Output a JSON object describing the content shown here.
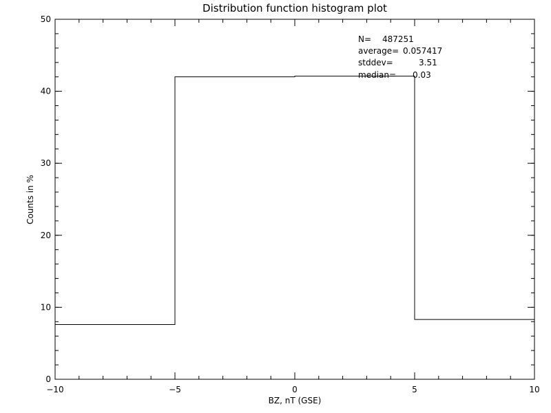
{
  "chart_data": {
    "type": "bar",
    "title": "Distribution function histogram plot",
    "xlabel": "BZ, nT (GSE)",
    "ylabel": "Counts in %",
    "xlim": [
      -10,
      10
    ],
    "ylim": [
      0,
      50
    ],
    "x_ticks": [
      -10,
      -5,
      0,
      5,
      10
    ],
    "x_tick_labels": [
      "−10",
      "−5",
      "0",
      "5",
      "10"
    ],
    "y_ticks": [
      0,
      10,
      20,
      30,
      40,
      50
    ],
    "y_tick_labels": [
      "0",
      "10",
      "20",
      "30",
      "40",
      "50"
    ],
    "bins": [
      {
        "x0": -10,
        "x1": -5,
        "value": 7.6
      },
      {
        "x0": -5,
        "x1": 0,
        "value": 42.0
      },
      {
        "x0": 0,
        "x1": 5,
        "value": 42.1
      },
      {
        "x0": 5,
        "x1": 10,
        "value": 8.3
      }
    ],
    "grid": false,
    "annotations": {
      "n_label": "N=",
      "n_value": "487251",
      "average_label": "average=",
      "average_value": "0.057417",
      "stddev_label": "stddev=",
      "stddev_value": "3.51",
      "median_label": "median=",
      "median_value": "0.03"
    }
  }
}
